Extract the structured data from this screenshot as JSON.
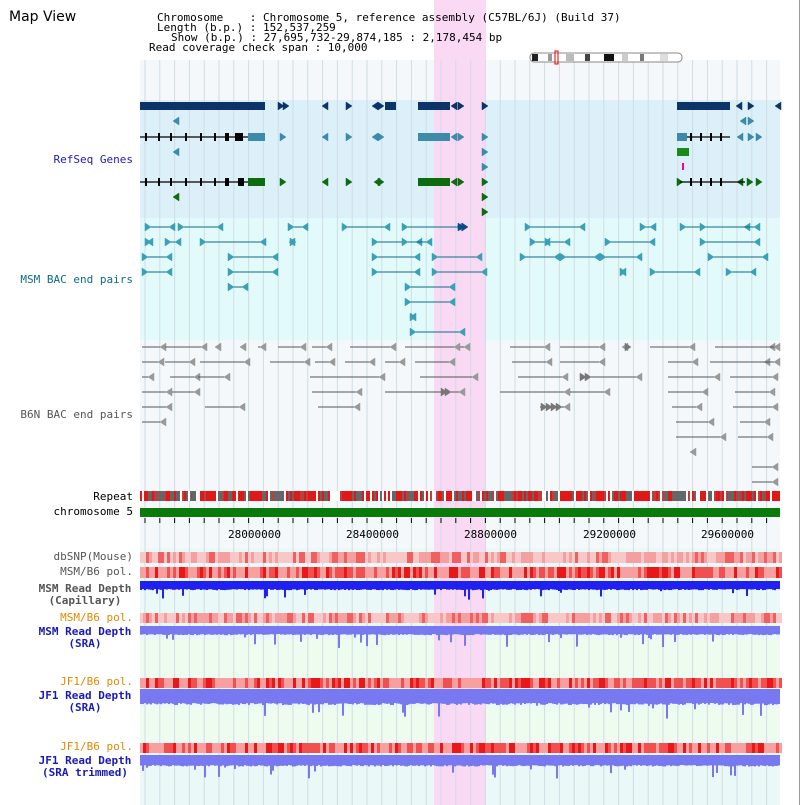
{
  "view": {
    "title": "Map View"
  },
  "info": {
    "chromosome_line": "Chromosome    : Chromosome 5, reference assembly (C57BL/6J) (Build 37)",
    "length_line": "Length (b.p.) : 152,537,259",
    "show_line": "Show (b.p.) : 27,695,732-29,874,185 : 2,178,454 bp",
    "coverage_line": "Read coverage check span : 10,000"
  },
  "tracks": {
    "refseq": "RefSeq Genes",
    "msm_bac": "MSM BAC end pairs",
    "b6n_bac": "B6N BAC end pairs",
    "repeat": "Repeat",
    "chromosome": "chromosome 5",
    "dbsnp": "dbSNP(Mouse)",
    "msm_pol": "MSM/B6 pol.",
    "msm_depth_cap_1": "MSM Read Depth",
    "msm_depth_cap_2": "(Capillary)",
    "msm_pol2": "MSM/B6 pol.",
    "msm_depth_sra_1": "MSM Read Depth",
    "msm_depth_sra_2": "(SRA)",
    "jf1_pol": "JF1/B6 pol.",
    "jf1_depth_sra_1": "JF1 Read Depth",
    "jf1_depth_sra_2": "(SRA)",
    "jf1_pol2": "JF1/B6 pol.",
    "jf1_depth_trim_1": "JF1 Read Depth",
    "jf1_depth_trim_2": "(SRA trimmed)"
  },
  "axis": {
    "ticks": [
      "28000000",
      "28400000",
      "28800000",
      "29200000",
      "29600000"
    ]
  },
  "colors": {
    "highlight": "#f9d9f4",
    "refseq_bg": "#dcf0fa",
    "msm_bg": "#e2fafa",
    "gene_dark": "#0c3468",
    "gene_mid": "#3d8aab",
    "gene_green": "#0e6b0e",
    "msm_line": "#0e6b85",
    "b6n_line": "#555555",
    "chrom_bar": "#0a7a0a",
    "snp": "#f08080",
    "depth_blue": "#2020f0",
    "depth_light": "#7878f0"
  }
}
